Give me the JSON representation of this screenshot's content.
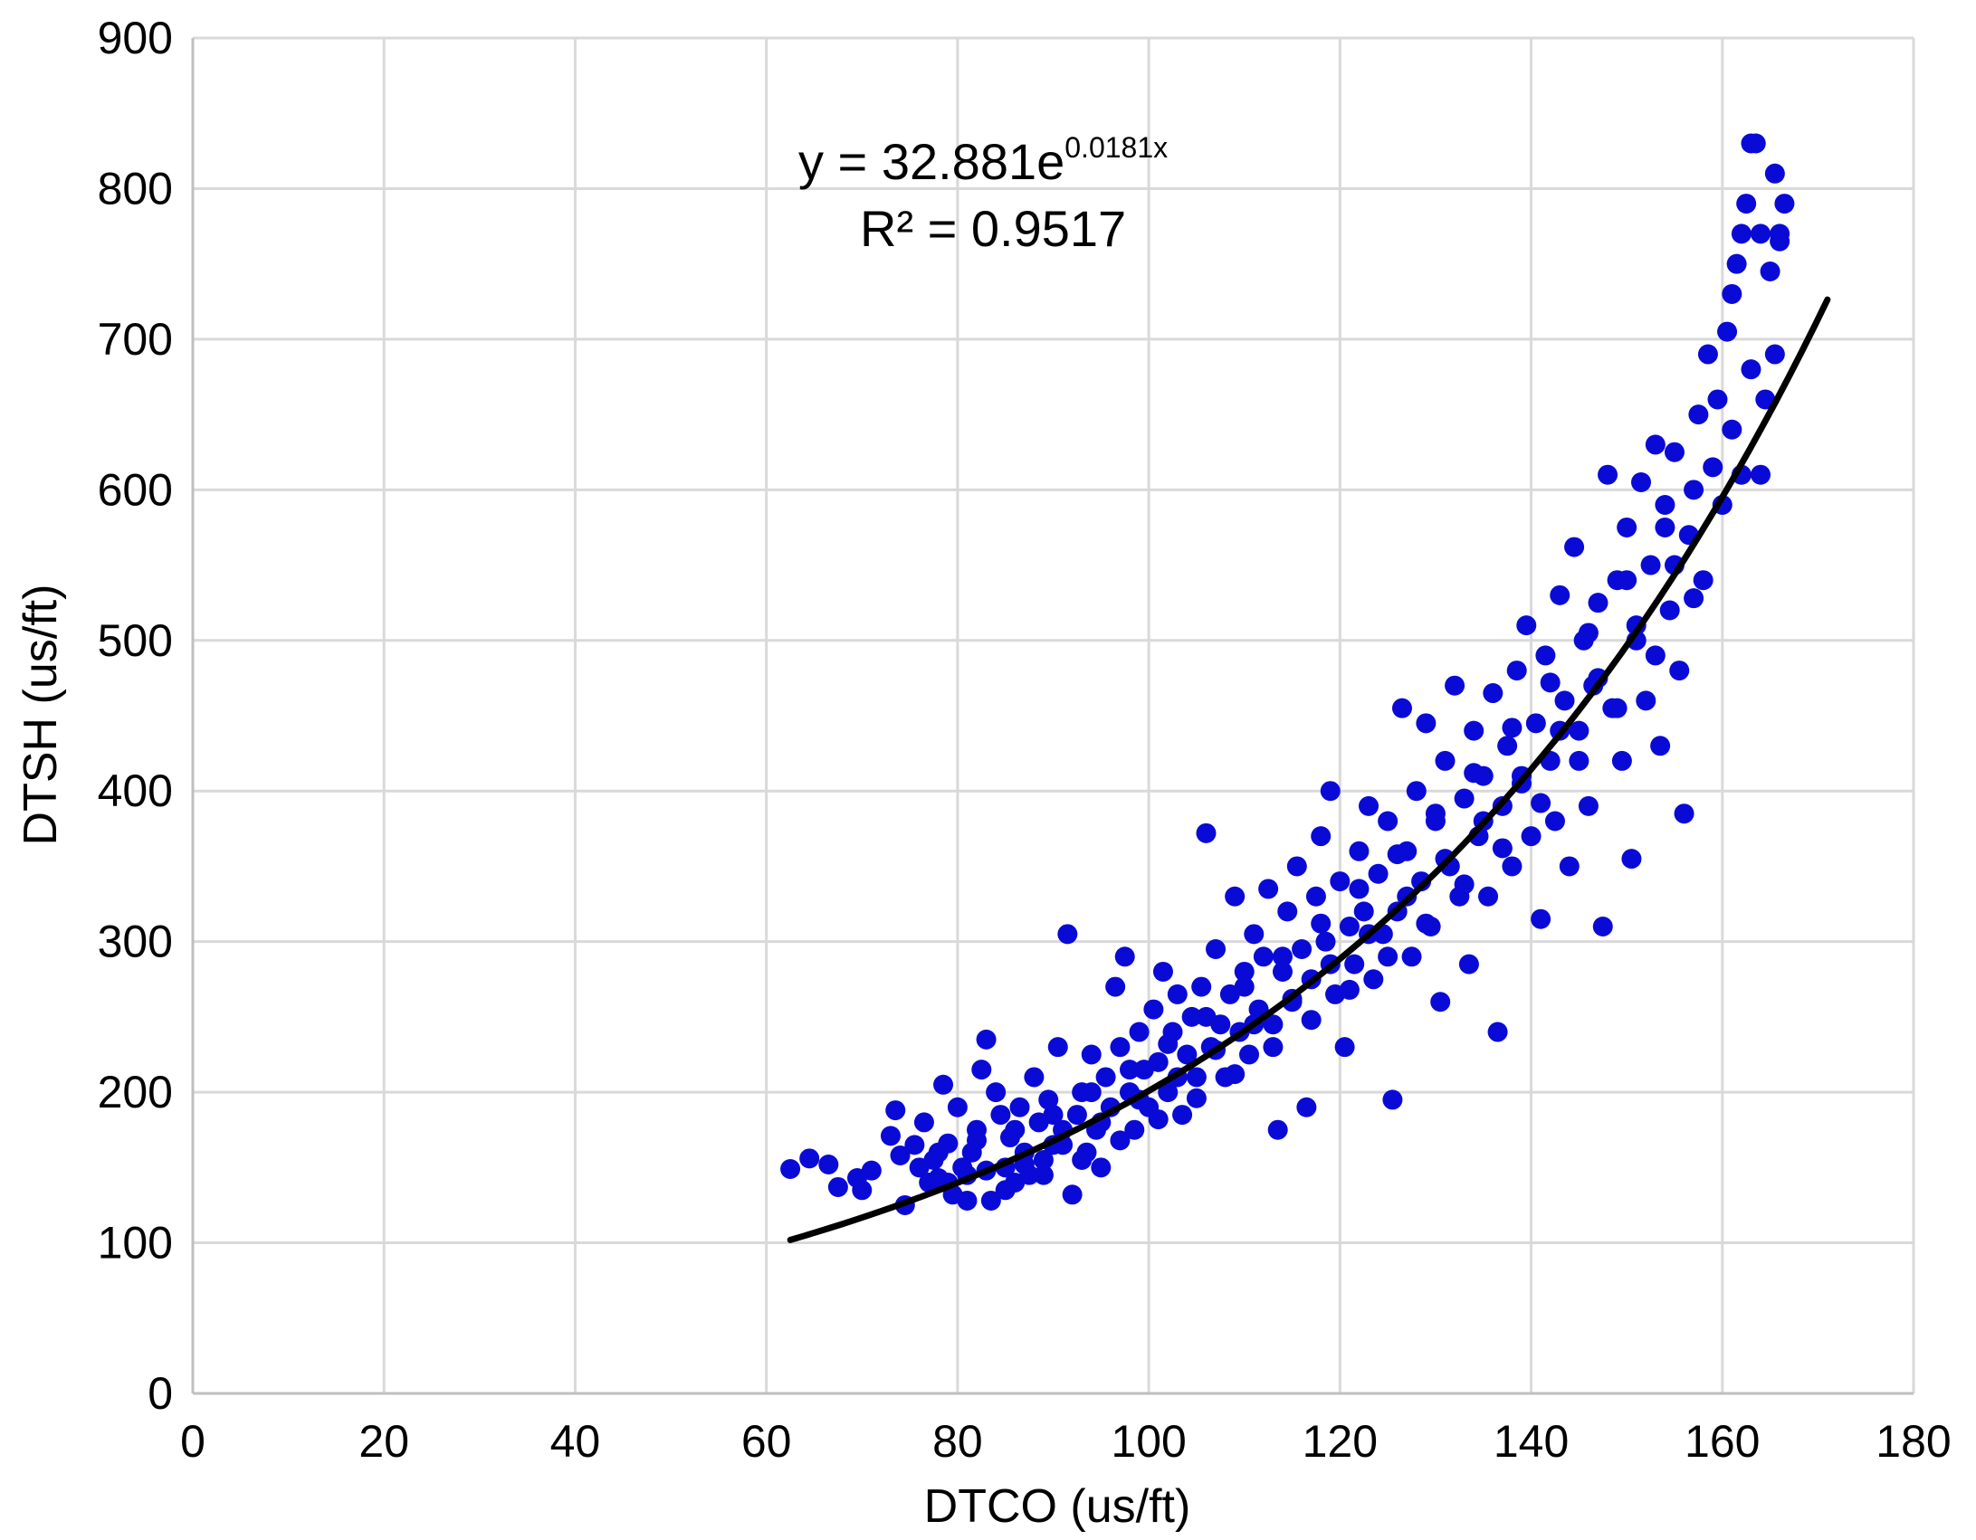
{
  "chart_data": {
    "type": "scatter",
    "title": "",
    "xlabel": "DTCO (us/ft)",
    "ylabel": "DTSH (us/ft)",
    "xlim": [
      0,
      180
    ],
    "ylim": [
      0,
      900
    ],
    "x_ticks": [
      0,
      20,
      40,
      60,
      80,
      100,
      120,
      140,
      160,
      180
    ],
    "y_ticks": [
      0,
      100,
      200,
      300,
      400,
      500,
      600,
      700,
      800,
      900
    ],
    "grid": true,
    "legend": "none",
    "marker_color": "#0a0ad6",
    "trend_color": "#000000",
    "trendline": {
      "type": "exponential",
      "a": 32.881,
      "b": 0.0181,
      "x_range": [
        62.5,
        171
      ],
      "equation_main": "y = 32.881e",
      "equation_exp": "0.0181x",
      "r2_label": "R² = 0.9517"
    },
    "points": [
      [
        62.5,
        149
      ],
      [
        64.5,
        156
      ],
      [
        66.5,
        152
      ],
      [
        67.5,
        137
      ],
      [
        69.5,
        143
      ],
      [
        70,
        135
      ],
      [
        71,
        148
      ],
      [
        73,
        171
      ],
      [
        73.5,
        188
      ],
      [
        74,
        158
      ],
      [
        74.5,
        125
      ],
      [
        75.5,
        165
      ],
      [
        76,
        150
      ],
      [
        76.5,
        180
      ],
      [
        77,
        140
      ],
      [
        77.5,
        155
      ],
      [
        78,
        143
      ],
      [
        78.5,
        205
      ],
      [
        79,
        166
      ],
      [
        79.5,
        132
      ],
      [
        80,
        190
      ],
      [
        80.5,
        150
      ],
      [
        81,
        145
      ],
      [
        81.5,
        160
      ],
      [
        82,
        175
      ],
      [
        82.5,
        215
      ],
      [
        83,
        235
      ],
      [
        83.5,
        128
      ],
      [
        84,
        200
      ],
      [
        84.5,
        185
      ],
      [
        85,
        150
      ],
      [
        85.5,
        170
      ],
      [
        86,
        140
      ],
      [
        86.5,
        190
      ],
      [
        87,
        160
      ],
      [
        87.5,
        145
      ],
      [
        88,
        210
      ],
      [
        88.5,
        180
      ],
      [
        89,
        155
      ],
      [
        89.5,
        195
      ],
      [
        90,
        165
      ],
      [
        90.5,
        230
      ],
      [
        91,
        175
      ],
      [
        91.5,
        305
      ],
      [
        92,
        132
      ],
      [
        92.5,
        185
      ],
      [
        93,
        200
      ],
      [
        93.5,
        160
      ],
      [
        94,
        225
      ],
      [
        94.5,
        175
      ],
      [
        95,
        150
      ],
      [
        95.5,
        210
      ],
      [
        96,
        190
      ],
      [
        96.5,
        270
      ],
      [
        97,
        230
      ],
      [
        97.5,
        290
      ],
      [
        98,
        200
      ],
      [
        98.5,
        175
      ],
      [
        99,
        240
      ],
      [
        99.5,
        215
      ],
      [
        100,
        190
      ],
      [
        100.5,
        255
      ],
      [
        101,
        220
      ],
      [
        101.5,
        280
      ],
      [
        102,
        200
      ],
      [
        102.5,
        240
      ],
      [
        103,
        265
      ],
      [
        103.5,
        185
      ],
      [
        104,
        225
      ],
      [
        104.5,
        250
      ],
      [
        105,
        210
      ],
      [
        105.5,
        270
      ],
      [
        106,
        372
      ],
      [
        106.5,
        230
      ],
      [
        107,
        295
      ],
      [
        107.5,
        245
      ],
      [
        108,
        210
      ],
      [
        108.5,
        265
      ],
      [
        109,
        330
      ],
      [
        109.5,
        240
      ],
      [
        110,
        280
      ],
      [
        110.5,
        225
      ],
      [
        111,
        305
      ],
      [
        111.5,
        255
      ],
      [
        112,
        290
      ],
      [
        112.5,
        335
      ],
      [
        113,
        245
      ],
      [
        113.5,
        175
      ],
      [
        114,
        280
      ],
      [
        114.5,
        320
      ],
      [
        115,
        260
      ],
      [
        115.5,
        350
      ],
      [
        116,
        295
      ],
      [
        116.5,
        190
      ],
      [
        117,
        275
      ],
      [
        117.5,
        330
      ],
      [
        118,
        370
      ],
      [
        118.5,
        300
      ],
      [
        119,
        400
      ],
      [
        119.5,
        265
      ],
      [
        120,
        340
      ],
      [
        120.5,
        230
      ],
      [
        121,
        310
      ],
      [
        121.5,
        285
      ],
      [
        122,
        360
      ],
      [
        122.5,
        320
      ],
      [
        123,
        390
      ],
      [
        123.5,
        275
      ],
      [
        124,
        345
      ],
      [
        124.5,
        305
      ],
      [
        125,
        380
      ],
      [
        125.5,
        195
      ],
      [
        126,
        320
      ],
      [
        126.5,
        455
      ],
      [
        127,
        360
      ],
      [
        127.5,
        290
      ],
      [
        128,
        400
      ],
      [
        128.5,
        340
      ],
      [
        129,
        445
      ],
      [
        129.5,
        310
      ],
      [
        130,
        380
      ],
      [
        130.5,
        260
      ],
      [
        131,
        420
      ],
      [
        131.5,
        350
      ],
      [
        132,
        470
      ],
      [
        132.5,
        330
      ],
      [
        133,
        395
      ],
      [
        133.5,
        285
      ],
      [
        134,
        440
      ],
      [
        134.5,
        370
      ],
      [
        135,
        410
      ],
      [
        135.5,
        330
      ],
      [
        136,
        465
      ],
      [
        136.5,
        240
      ],
      [
        137,
        390
      ],
      [
        137.5,
        430
      ],
      [
        138,
        350
      ],
      [
        138.5,
        480
      ],
      [
        139,
        405
      ],
      [
        139.5,
        510
      ],
      [
        140,
        370
      ],
      [
        140.5,
        445
      ],
      [
        141,
        315
      ],
      [
        141.5,
        490
      ],
      [
        142,
        420
      ],
      [
        142.5,
        380
      ],
      [
        143,
        530
      ],
      [
        143.5,
        460
      ],
      [
        144,
        350
      ],
      [
        144.5,
        562
      ],
      [
        145,
        440
      ],
      [
        145.5,
        500
      ],
      [
        146,
        390
      ],
      [
        146.5,
        470
      ],
      [
        147,
        525
      ],
      [
        147.5,
        310
      ],
      [
        148,
        610
      ],
      [
        148.5,
        455
      ],
      [
        149,
        540
      ],
      [
        149.5,
        420
      ],
      [
        150,
        575
      ],
      [
        150.5,
        355
      ],
      [
        151,
        500
      ],
      [
        151.5,
        605
      ],
      [
        152,
        460
      ],
      [
        152.5,
        550
      ],
      [
        153,
        630
      ],
      [
        153.5,
        430
      ],
      [
        154,
        590
      ],
      [
        154.5,
        520
      ],
      [
        155,
        625
      ],
      [
        155.5,
        480
      ],
      [
        156,
        385
      ],
      [
        156.5,
        570
      ],
      [
        157,
        600
      ],
      [
        157.5,
        650
      ],
      [
        158,
        540
      ],
      [
        158.5,
        690
      ],
      [
        159,
        615
      ],
      [
        159.5,
        660
      ],
      [
        160,
        590
      ],
      [
        160.5,
        705
      ],
      [
        161,
        640
      ],
      [
        161.5,
        750
      ],
      [
        162,
        610
      ],
      [
        162.5,
        790
      ],
      [
        163,
        680
      ],
      [
        163.5,
        830
      ],
      [
        164,
        770
      ],
      [
        164.5,
        660
      ],
      [
        165,
        745
      ],
      [
        165.5,
        810
      ],
      [
        166,
        765
      ],
      [
        166.5,
        790
      ],
      [
        163,
        830
      ],
      [
        162,
        770
      ],
      [
        164,
        610
      ],
      [
        165.5,
        690
      ],
      [
        161,
        730
      ],
      [
        166,
        770
      ],
      [
        79,
        140
      ],
      [
        83,
        148
      ],
      [
        87,
        152
      ],
      [
        91,
        165
      ],
      [
        95,
        180
      ],
      [
        99,
        195
      ],
      [
        103,
        210
      ],
      [
        107,
        228
      ],
      [
        111,
        245
      ],
      [
        115,
        262
      ],
      [
        119,
        285
      ],
      [
        123,
        305
      ],
      [
        127,
        330
      ],
      [
        131,
        355
      ],
      [
        135,
        380
      ],
      [
        139,
        410
      ],
      [
        143,
        440
      ],
      [
        147,
        475
      ],
      [
        151,
        510
      ],
      [
        155,
        550
      ],
      [
        81,
        128
      ],
      [
        85,
        135
      ],
      [
        89,
        145
      ],
      [
        93,
        155
      ],
      [
        97,
        168
      ],
      [
        101,
        182
      ],
      [
        105,
        196
      ],
      [
        109,
        212
      ],
      [
        113,
        230
      ],
      [
        117,
        248
      ],
      [
        121,
        268
      ],
      [
        125,
        290
      ],
      [
        129,
        312
      ],
      [
        133,
        338
      ],
      [
        137,
        362
      ],
      [
        141,
        392
      ],
      [
        145,
        420
      ],
      [
        149,
        455
      ],
      [
        153,
        490
      ],
      [
        157,
        528
      ],
      [
        78,
        160
      ],
      [
        82,
        168
      ],
      [
        86,
        175
      ],
      [
        90,
        185
      ],
      [
        94,
        200
      ],
      [
        98,
        215
      ],
      [
        102,
        232
      ],
      [
        106,
        250
      ],
      [
        110,
        270
      ],
      [
        114,
        290
      ],
      [
        118,
        312
      ],
      [
        122,
        335
      ],
      [
        126,
        358
      ],
      [
        130,
        385
      ],
      [
        134,
        412
      ],
      [
        138,
        442
      ],
      [
        142,
        472
      ],
      [
        146,
        505
      ],
      [
        150,
        540
      ],
      [
        154,
        575
      ]
    ]
  }
}
